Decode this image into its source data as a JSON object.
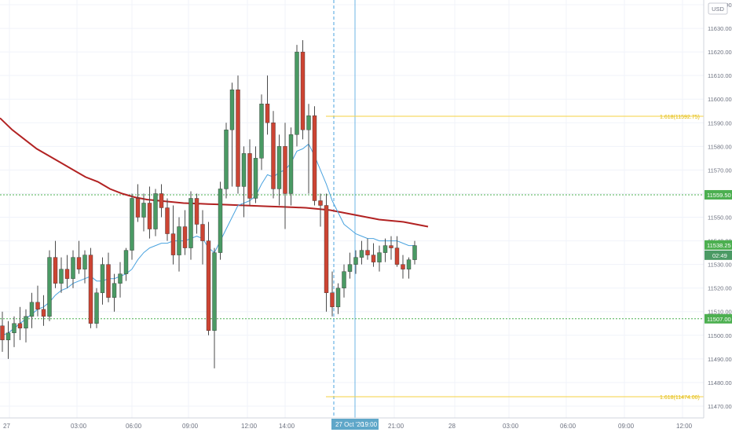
{
  "chart_data": {
    "type": "candlestick",
    "currency": "USD",
    "x_ticks": [
      "27",
      "03:00",
      "06:00",
      "09:00",
      "12:00",
      "14:00",
      "19:00",
      "21:00",
      "28",
      "03:00",
      "06:00",
      "09:00",
      "12:00"
    ],
    "y_ticks": [
      "11470.00",
      "11480.00",
      "11490.00",
      "11500.00",
      "11510.00",
      "11520.00",
      "11530.00",
      "11540.00",
      "11550.00",
      "11560.00",
      "11570.00",
      "11580.00",
      "11590.00",
      "11600.00",
      "11610.00",
      "11620.00",
      "11630.00",
      "11640.00"
    ],
    "ylim": [
      11465,
      11642
    ],
    "crosshair_date_label": "27 Oct '20",
    "price_labels": [
      {
        "value": 11559.5,
        "text": "11559.50",
        "color": "#4caf50"
      },
      {
        "value": 11538.25,
        "text": "11538.25",
        "color": "#4caf50"
      },
      {
        "value": 11507.0,
        "text": "11507.00",
        "color": "#4caf50"
      }
    ],
    "countdown_label": "02:49",
    "fib_levels": [
      {
        "value": 11592.75,
        "text": "1.618(11592.75)",
        "color": "#f5d142"
      },
      {
        "value": 11474.0,
        "text": "1.618(11474.00)",
        "color": "#f5d142"
      }
    ],
    "horizontal_levels": [
      {
        "value": 11559.5,
        "color": "#4caf50",
        "style": "dotted"
      },
      {
        "value": 11507.0,
        "color": "#4caf50",
        "style": "dotted"
      }
    ],
    "colors": {
      "up": "#4a9a64",
      "down": "#cc4433",
      "ma_slow": "#b22222",
      "ma_fast": "#4aa3df",
      "grid": "#f0f3fa",
      "axis_text": "#6d7280"
    },
    "candles": [
      [
        11504,
        11510,
        11493,
        11498
      ],
      [
        11498,
        11506,
        11490,
        11501
      ],
      [
        11501,
        11508,
        11495,
        11505
      ],
      [
        11505,
        11512,
        11498,
        11503
      ],
      [
        11503,
        11511,
        11497,
        11508
      ],
      [
        11508,
        11518,
        11503,
        11514
      ],
      [
        11514,
        11521,
        11508,
        11511
      ],
      [
        11511,
        11517,
        11504,
        11508
      ],
      [
        11508,
        11536,
        11506,
        11533
      ],
      [
        11533,
        11540,
        11520,
        11522
      ],
      [
        11522,
        11533,
        11518,
        11528
      ],
      [
        11528,
        11534,
        11520,
        11524
      ],
      [
        11524,
        11536,
        11520,
        11533
      ],
      [
        11533,
        11540,
        11526,
        11528
      ],
      [
        11528,
        11536,
        11522,
        11534
      ],
      [
        11534,
        11537,
        11503,
        11505
      ],
      [
        11505,
        11520,
        11503,
        11518
      ],
      [
        11518,
        11533,
        11513,
        11530
      ],
      [
        11530,
        11535,
        11514,
        11516
      ],
      [
        11516,
        11526,
        11510,
        11522
      ],
      [
        11522,
        11531,
        11516,
        11526
      ],
      [
        11526,
        11537,
        11523,
        11536
      ],
      [
        11536,
        11560,
        11532,
        11558
      ],
      [
        11558,
        11564,
        11548,
        11550
      ],
      [
        11550,
        11560,
        11544,
        11556
      ],
      [
        11556,
        11563,
        11541,
        11545
      ],
      [
        11545,
        11562,
        11542,
        11560
      ],
      [
        11560,
        11564,
        11550,
        11554
      ],
      [
        11554,
        11558,
        11540,
        11543
      ],
      [
        11543,
        11555,
        11530,
        11534
      ],
      [
        11534,
        11550,
        11527,
        11546
      ],
      [
        11546,
        11553,
        11534,
        11537
      ],
      [
        11537,
        11561,
        11532,
        11558
      ],
      [
        11558,
        11560,
        11543,
        11547
      ],
      [
        11547,
        11553,
        11530,
        11540
      ],
      [
        11540,
        11548,
        11500,
        11502
      ],
      [
        11502,
        11537,
        11486,
        11535
      ],
      [
        11535,
        11565,
        11532,
        11562
      ],
      [
        11562,
        11590,
        11558,
        11587
      ],
      [
        11587,
        11607,
        11563,
        11604
      ],
      [
        11604,
        11610,
        11560,
        11563
      ],
      [
        11563,
        11580,
        11550,
        11577
      ],
      [
        11577,
        11583,
        11555,
        11558
      ],
      [
        11558,
        11580,
        11556,
        11575
      ],
      [
        11575,
        11602,
        11570,
        11598
      ],
      [
        11598,
        11610,
        11585,
        11590
      ],
      [
        11590,
        11595,
        11558,
        11562
      ],
      [
        11562,
        11585,
        11555,
        11580
      ],
      [
        11580,
        11590,
        11545,
        11560
      ],
      [
        11560,
        11588,
        11555,
        11585
      ],
      [
        11585,
        11623,
        11580,
        11620
      ],
      [
        11620,
        11625,
        11583,
        11587
      ],
      [
        11587,
        11598,
        11560,
        11593
      ],
      [
        11593,
        11597,
        11555,
        11557
      ],
      [
        11557,
        11560,
        11546,
        11555
      ],
      [
        11555,
        11560,
        11510,
        11518
      ],
      [
        11518,
        11527,
        11508,
        11512
      ],
      [
        11512,
        11522,
        11509,
        11520
      ],
      [
        11520,
        11530,
        11516,
        11527
      ],
      [
        11527,
        11535,
        11524,
        11530
      ],
      [
        11530,
        11536,
        11526,
        11533
      ],
      [
        11533,
        11540,
        11530,
        11536
      ],
      [
        11536,
        11541,
        11532,
        11534
      ],
      [
        11534,
        11539,
        11529,
        11531
      ],
      [
        11531,
        11538,
        11527,
        11535
      ],
      [
        11535,
        11541,
        11531,
        11538
      ],
      [
        11538,
        11542,
        11532,
        11537
      ],
      [
        11537,
        11542,
        11529,
        11530
      ],
      [
        11530,
        11534,
        11524,
        11528
      ],
      [
        11528,
        11533,
        11524,
        11532
      ],
      [
        11532,
        11540,
        11530,
        11538
      ]
    ],
    "ma_slow": [
      11592,
      11587,
      11583,
      11579,
      11576,
      11573,
      11570,
      11567,
      11565,
      11562,
      11560,
      11558.5,
      11557.5,
      11557,
      11556.5,
      11556,
      11555.8,
      11555.6,
      11555.4,
      11555.2,
      11555,
      11554.8,
      11554.6,
      11554.4,
      11554.2,
      11554,
      11553.5,
      11553,
      11552,
      11551,
      11550,
      11549,
      11548.5,
      11548,
      11547,
      11546
    ],
    "ma_fast": [
      11500,
      11501,
      11503,
      11505,
      11507,
      11509,
      11511,
      11512,
      11514,
      11517,
      11519,
      11520,
      11522,
      11523,
      11524,
      11525,
      11523,
      11523,
      11524,
      11524,
      11525,
      11526,
      11528,
      11532,
      11535,
      11537,
      11538,
      11539,
      11539,
      11540,
      11540,
      11540,
      11541,
      11542,
      11541,
      11537,
      11535,
      11540,
      11545,
      11550,
      11555,
      11556,
      11557,
      11559,
      11564,
      11568,
      11567,
      11569,
      11570,
      11573,
      11578,
      11579,
      11581,
      11576,
      11570,
      11564,
      11557,
      11552,
      11547,
      11545,
      11543,
      11542,
      11541,
      11541,
      11540,
      11540,
      11540,
      11540,
      11539,
      11538,
      11538
    ]
  }
}
